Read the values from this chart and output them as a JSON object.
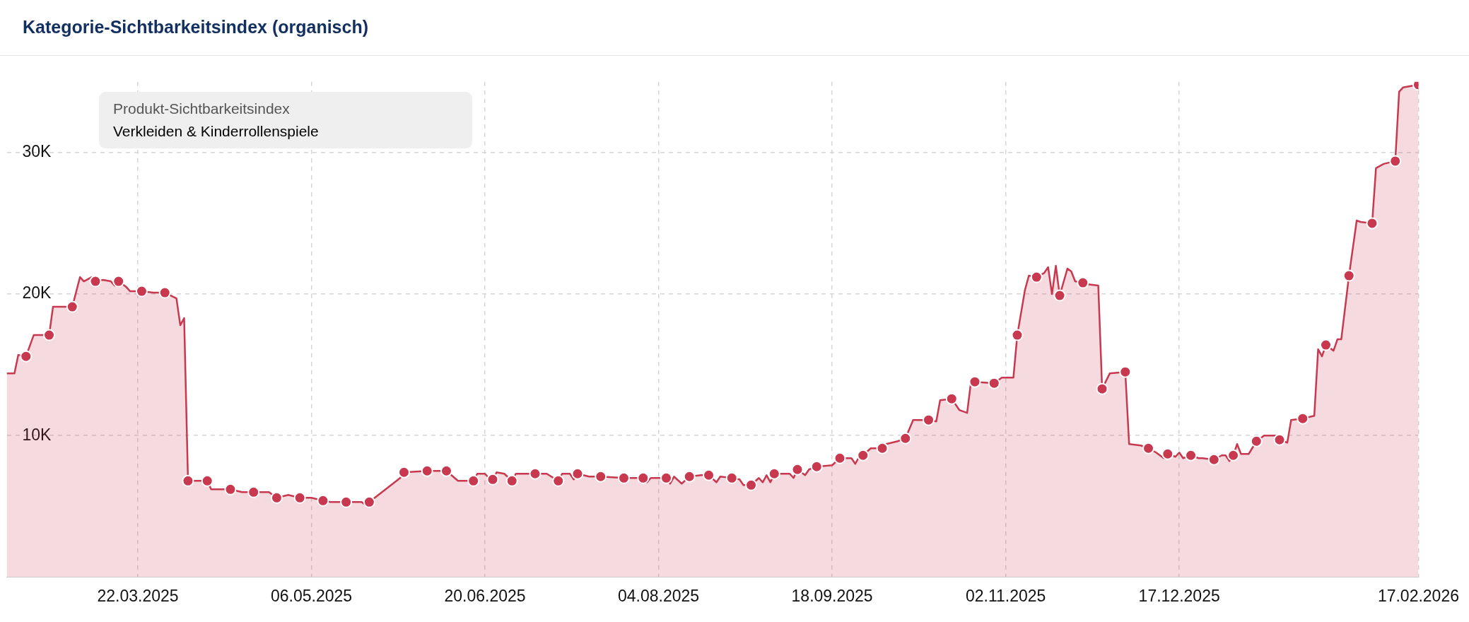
{
  "chart_data": {
    "type": "area",
    "title": "Kategorie-Sichtbarkeitsindex (organisch)",
    "annotations": [
      "Produkt-Sichtbarkeitsindex",
      "Verkleiden & Kinderrollenspiele"
    ],
    "xlim": [
      "2025-02-16",
      "2026-02-17"
    ],
    "xticks": [
      {
        "value": "2025-03-22",
        "label": "22.03.2025"
      },
      {
        "value": "2025-05-06",
        "label": "06.05.2025"
      },
      {
        "value": "2025-06-20",
        "label": "20.06.2025"
      },
      {
        "value": "2025-08-04",
        "label": "04.08.2025"
      },
      {
        "value": "2025-09-18",
        "label": "18.09.2025"
      },
      {
        "value": "2025-11-02",
        "label": "02.11.2025"
      },
      {
        "value": "2025-12-17",
        "label": "17.12.2025"
      },
      {
        "value": "2026-02-17",
        "label": "17.02.2026"
      }
    ],
    "ylim": [
      0,
      35000
    ],
    "yticks": [
      {
        "value": 10000,
        "label": "10K"
      },
      {
        "value": 20000,
        "label": "20K"
      },
      {
        "value": 30000,
        "label": "30K"
      }
    ],
    "grid": true,
    "legend": false,
    "series": [
      {
        "type": "area",
        "color": "#c8394f",
        "marker": "none",
        "x": [
          "2025-02-16",
          "2025-02-18",
          "2025-02-19",
          "2025-02-21",
          "2025-02-23",
          "2025-02-25",
          "2025-02-27",
          "2025-02-28",
          "2025-03-05",
          "2025-03-07",
          "2025-03-08",
          "2025-03-10",
          "2025-03-11",
          "2025-03-13",
          "2025-03-15",
          "2025-03-16",
          "2025-03-17",
          "2025-03-19",
          "2025-03-20",
          "2025-03-23",
          "2025-03-26",
          "2025-03-29",
          "2025-04-01",
          "2025-04-02",
          "2025-04-03",
          "2025-04-04",
          "2025-04-08",
          "2025-04-09",
          "2025-04-10",
          "2025-04-15",
          "2025-04-18",
          "2025-04-21",
          "2025-04-25",
          "2025-04-27",
          "2025-04-30",
          "2025-05-03",
          "2025-05-06",
          "2025-05-09",
          "2025-05-11",
          "2025-05-15",
          "2025-05-19",
          "2025-05-20",
          "2025-05-21",
          "2025-05-29",
          "2025-05-30",
          "2025-06-05",
          "2025-06-10",
          "2025-06-13",
          "2025-06-17",
          "2025-06-18",
          "2025-06-20",
          "2025-06-21",
          "2025-06-22",
          "2025-06-23",
          "2025-06-25",
          "2025-06-27",
          "2025-06-28",
          "2025-07-03",
          "2025-07-06",
          "2025-07-09",
          "2025-07-10",
          "2025-07-12",
          "2025-07-13",
          "2025-07-14",
          "2025-07-17",
          "2025-07-20",
          "2025-07-26",
          "2025-07-31",
          "2025-08-01",
          "2025-08-02",
          "2025-08-06",
          "2025-08-07",
          "2025-08-08",
          "2025-08-10",
          "2025-08-12",
          "2025-08-15",
          "2025-08-17",
          "2025-08-19",
          "2025-08-20",
          "2025-08-23",
          "2025-08-25",
          "2025-08-26",
          "2025-08-28",
          "2025-08-30",
          "2025-08-31",
          "2025-09-01",
          "2025-09-02",
          "2025-09-03",
          "2025-09-07",
          "2025-09-08",
          "2025-09-09",
          "2025-09-11",
          "2025-09-12",
          "2025-09-14",
          "2025-09-18",
          "2025-09-20",
          "2025-09-23",
          "2025-09-24",
          "2025-09-25",
          "2025-09-26",
          "2025-09-28",
          "2025-10-01",
          "2025-10-02",
          "2025-10-05",
          "2025-10-07",
          "2025-10-09",
          "2025-10-13",
          "2025-10-15",
          "2025-10-16",
          "2025-10-19",
          "2025-10-21",
          "2025-10-23",
          "2025-10-24",
          "2025-10-25",
          "2025-10-30",
          "2025-11-01",
          "2025-11-04",
          "2025-11-05",
          "2025-11-07",
          "2025-11-08",
          "2025-11-10",
          "2025-11-12",
          "2025-11-13",
          "2025-11-14",
          "2025-11-15",
          "2025-11-16",
          "2025-11-18",
          "2025-11-19",
          "2025-11-20",
          "2025-11-22",
          "2025-11-23",
          "2025-11-26",
          "2025-11-27",
          "2025-11-29",
          "2025-12-03",
          "2025-12-04",
          "2025-12-07",
          "2025-12-09",
          "2025-12-11",
          "2025-12-13",
          "2025-12-14",
          "2025-12-16",
          "2025-12-17",
          "2025-12-18",
          "2025-12-20",
          "2025-12-22",
          "2025-12-23",
          "2025-12-26",
          "2025-12-28",
          "2025-12-29",
          "2025-12-30",
          "2025-12-31",
          "2026-01-01",
          "2026-01-02",
          "2026-01-04",
          "2026-01-06",
          "2026-01-08",
          "2026-01-11",
          "2026-01-12",
          "2026-01-14",
          "2026-01-15",
          "2026-01-18",
          "2026-01-21",
          "2026-01-22",
          "2026-01-23",
          "2026-01-24",
          "2026-01-26",
          "2026-01-27",
          "2026-01-28",
          "2026-01-30",
          "2026-02-01",
          "2026-02-02",
          "2026-02-05",
          "2026-02-06",
          "2026-02-08",
          "2026-02-11",
          "2026-02-12",
          "2026-02-13",
          "2026-02-17"
        ],
        "values": [
          14400,
          14400,
          15700,
          15600,
          17100,
          17100,
          17100,
          19100,
          19100,
          21200,
          20900,
          21200,
          20900,
          21000,
          20900,
          20600,
          20900,
          20500,
          20200,
          20200,
          20100,
          20100,
          19700,
          17800,
          18300,
          6800,
          6800,
          6800,
          6200,
          6200,
          6000,
          6000,
          6000,
          5600,
          5800,
          5600,
          5600,
          5400,
          5300,
          5300,
          5300,
          5100,
          5300,
          7000,
          7400,
          7500,
          7500,
          6800,
          6800,
          7300,
          7300,
          7000,
          6900,
          7400,
          7300,
          6800,
          7300,
          7300,
          7300,
          6800,
          7300,
          7300,
          6900,
          7300,
          7100,
          7100,
          7000,
          7000,
          6700,
          7000,
          7000,
          6600,
          7100,
          6600,
          7100,
          7200,
          7200,
          6700,
          7100,
          7000,
          6900,
          6500,
          6500,
          7000,
          6700,
          7200,
          6700,
          7300,
          7300,
          7000,
          7600,
          7200,
          7600,
          7800,
          7900,
          8400,
          8400,
          8000,
          8500,
          8600,
          9100,
          9100,
          9400,
          9600,
          9800,
          11100,
          11100,
          11000,
          12500,
          12600,
          11800,
          11600,
          13800,
          13800,
          13700,
          14100,
          14100,
          17100,
          20300,
          21300,
          21200,
          21500,
          21900,
          20000,
          22000,
          19900,
          21800,
          21600,
          20900,
          20800,
          20700,
          20600,
          13300,
          14400,
          14500,
          9400,
          9300,
          9100,
          8800,
          8400,
          8700,
          8500,
          8800,
          8400,
          8600,
          8400,
          8400,
          8300,
          8600,
          8600,
          8200,
          8600,
          9400,
          8700,
          8700,
          9600,
          10000,
          10000,
          9700,
          9500,
          11100,
          11200,
          11400,
          16100,
          15600,
          16400,
          16000,
          16800,
          16800,
          21300,
          25200,
          25100,
          25000,
          28900,
          29200,
          29400,
          34300,
          34600,
          34800
        ]
      },
      {
        "type": "scatter",
        "color": "#c8394f",
        "marker": "circle",
        "x": [
          "2025-02-21",
          "2025-02-27",
          "2025-03-05",
          "2025-03-11",
          "2025-03-17",
          "2025-03-23",
          "2025-03-29",
          "2025-04-04",
          "2025-04-09",
          "2025-04-15",
          "2025-04-21",
          "2025-04-27",
          "2025-05-03",
          "2025-05-09",
          "2025-05-15",
          "2025-05-21",
          "2025-05-30",
          "2025-06-05",
          "2025-06-10",
          "2025-06-17",
          "2025-06-22",
          "2025-06-27",
          "2025-07-03",
          "2025-07-09",
          "2025-07-14",
          "2025-07-20",
          "2025-07-26",
          "2025-07-31",
          "2025-08-06",
          "2025-08-12",
          "2025-08-17",
          "2025-08-23",
          "2025-08-28",
          "2025-09-03",
          "2025-09-09",
          "2025-09-14",
          "2025-09-20",
          "2025-09-26",
          "2025-10-01",
          "2025-10-07",
          "2025-10-13",
          "2025-10-19",
          "2025-10-25",
          "2025-10-30",
          "2025-11-05",
          "2025-11-10",
          "2025-11-16",
          "2025-11-22",
          "2025-11-27",
          "2025-12-03",
          "2025-12-09",
          "2025-12-14",
          "2025-12-20",
          "2025-12-26",
          "2025-12-31",
          "2026-01-06",
          "2026-01-12",
          "2026-01-18",
          "2026-01-24",
          "2026-01-30",
          "2026-02-05",
          "2026-02-11",
          "2026-02-17"
        ],
        "values": [
          15600,
          17100,
          19100,
          20900,
          20900,
          20200,
          20100,
          6800,
          6800,
          6200,
          6000,
          5600,
          5600,
          5400,
          5300,
          5300,
          7400,
          7500,
          7500,
          6800,
          6900,
          6800,
          7300,
          6800,
          7300,
          7100,
          7000,
          7000,
          7000,
          7100,
          7200,
          7000,
          6500,
          7300,
          7600,
          7800,
          8400,
          8600,
          9100,
          9800,
          11100,
          12600,
          13800,
          13700,
          17100,
          21200,
          19900,
          20800,
          13300,
          14500,
          9100,
          8700,
          8600,
          8300,
          8600,
          9600,
          9700,
          11200,
          16400,
          21300,
          25000,
          29400,
          34800
        ]
      }
    ]
  }
}
